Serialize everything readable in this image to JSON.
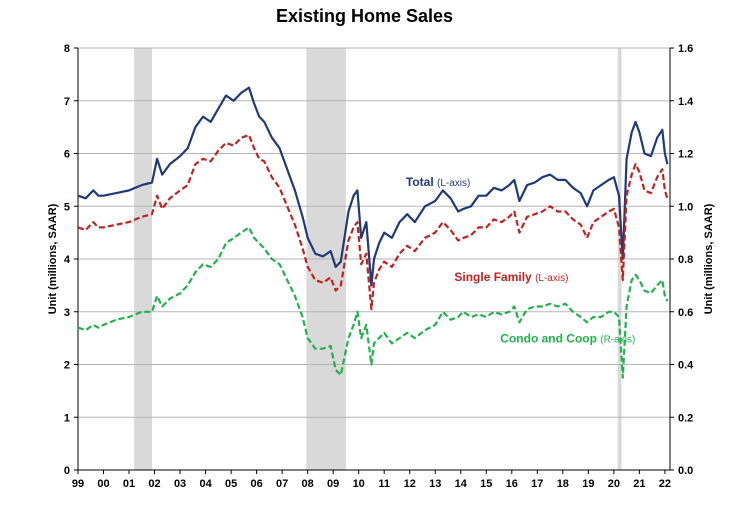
{
  "chart_data": {
    "type": "line",
    "title": "Existing Home Sales",
    "ylabel_left": "Unit (millions, SAAR)",
    "ylabel_right": "Unit (millions, SAAR)",
    "ylim_left": [
      0,
      8
    ],
    "ylim_right": [
      0,
      1.6
    ],
    "yticks_left": [
      "0",
      "1",
      "2",
      "3",
      "4",
      "5",
      "6",
      "7",
      "8"
    ],
    "yticks_right": [
      "0.0",
      "0.2",
      "0.4",
      "0.6",
      "0.8",
      "1.0",
      "1.2",
      "1.4",
      "1.6"
    ],
    "xlim": [
      1999,
      2022.2
    ],
    "xticks": [
      "99",
      "00",
      "01",
      "02",
      "03",
      "04",
      "05",
      "06",
      "07",
      "08",
      "09",
      "10",
      "11",
      "12",
      "13",
      "14",
      "15",
      "16",
      "17",
      "18",
      "19",
      "20",
      "21",
      "22"
    ],
    "grid": true,
    "recessions": [
      [
        2001.2,
        2001.9
      ],
      [
        2007.95,
        2009.5
      ],
      [
        2020.15,
        2020.3
      ]
    ],
    "series": [
      {
        "name": "Total",
        "axis_label": "(L-axis)",
        "axis": "left",
        "color": "#1f3a77",
        "dash": "solid",
        "x": [
          1999.0,
          1999.3,
          1999.6,
          1999.8,
          2000.0,
          2000.5,
          2001.0,
          2001.5,
          2001.9,
          2002.1,
          2002.3,
          2002.6,
          2003.0,
          2003.3,
          2003.6,
          2003.9,
          2004.2,
          2004.5,
          2004.8,
          2005.1,
          2005.4,
          2005.7,
          2005.9,
          2006.1,
          2006.3,
          2006.6,
          2006.9,
          2007.2,
          2007.5,
          2007.8,
          2008.0,
          2008.3,
          2008.6,
          2008.9,
          2009.1,
          2009.3,
          2009.6,
          2009.8,
          2009.95,
          2010.1,
          2010.3,
          2010.5,
          2010.6,
          2010.8,
          2011.0,
          2011.3,
          2011.6,
          2011.9,
          2012.2,
          2012.6,
          2013.0,
          2013.3,
          2013.6,
          2013.9,
          2014.1,
          2014.4,
          2014.7,
          2015.0,
          2015.3,
          2015.6,
          2015.9,
          2016.1,
          2016.3,
          2016.6,
          2016.9,
          2017.2,
          2017.5,
          2017.8,
          2018.1,
          2018.4,
          2018.7,
          2018.95,
          2019.2,
          2019.5,
          2019.8,
          2020.0,
          2020.2,
          2020.35,
          2020.5,
          2020.7,
          2020.85,
          2021.0,
          2021.2,
          2021.45,
          2021.7,
          2021.9,
          2022.0,
          2022.1
        ],
        "values": [
          5.2,
          5.15,
          5.3,
          5.2,
          5.2,
          5.25,
          5.3,
          5.4,
          5.45,
          5.9,
          5.6,
          5.8,
          5.95,
          6.1,
          6.5,
          6.7,
          6.6,
          6.85,
          7.1,
          7.0,
          7.15,
          7.25,
          6.95,
          6.7,
          6.6,
          6.3,
          6.1,
          5.7,
          5.3,
          4.8,
          4.4,
          4.1,
          4.05,
          4.15,
          3.85,
          3.95,
          4.9,
          5.2,
          5.3,
          4.4,
          4.7,
          3.5,
          4.0,
          4.3,
          4.5,
          4.4,
          4.7,
          4.85,
          4.7,
          5.0,
          5.1,
          5.3,
          5.15,
          4.9,
          4.95,
          5.0,
          5.2,
          5.2,
          5.35,
          5.3,
          5.4,
          5.5,
          5.1,
          5.4,
          5.45,
          5.55,
          5.6,
          5.5,
          5.5,
          5.35,
          5.25,
          5.0,
          5.3,
          5.4,
          5.5,
          5.55,
          5.2,
          4.0,
          5.9,
          6.4,
          6.6,
          6.4,
          6.0,
          5.95,
          6.3,
          6.45,
          6.0,
          5.8
        ]
      },
      {
        "name": "Single Family",
        "axis_label": "(L-axis)",
        "axis": "left",
        "color": "#c0221e",
        "dash": "dashed",
        "x": [
          1999.0,
          1999.3,
          1999.6,
          1999.8,
          2000.0,
          2000.5,
          2001.0,
          2001.5,
          2001.9,
          2002.1,
          2002.3,
          2002.6,
          2003.0,
          2003.3,
          2003.6,
          2003.9,
          2004.2,
          2004.5,
          2004.8,
          2005.1,
          2005.4,
          2005.7,
          2005.9,
          2006.1,
          2006.3,
          2006.6,
          2006.9,
          2007.2,
          2007.5,
          2007.8,
          2008.0,
          2008.3,
          2008.6,
          2008.9,
          2009.1,
          2009.3,
          2009.6,
          2009.8,
          2009.95,
          2010.1,
          2010.3,
          2010.5,
          2010.6,
          2010.8,
          2011.0,
          2011.3,
          2011.6,
          2011.9,
          2012.2,
          2012.6,
          2013.0,
          2013.3,
          2013.6,
          2013.9,
          2014.1,
          2014.4,
          2014.7,
          2015.0,
          2015.3,
          2015.6,
          2015.9,
          2016.1,
          2016.3,
          2016.6,
          2016.9,
          2017.2,
          2017.5,
          2017.8,
          2018.1,
          2018.4,
          2018.7,
          2018.95,
          2019.2,
          2019.5,
          2019.8,
          2020.0,
          2020.2,
          2020.35,
          2020.5,
          2020.7,
          2020.85,
          2021.0,
          2021.2,
          2021.45,
          2021.7,
          2021.9,
          2022.0,
          2022.1
        ],
        "values": [
          4.6,
          4.55,
          4.7,
          4.6,
          4.6,
          4.65,
          4.7,
          4.8,
          4.85,
          5.2,
          4.95,
          5.15,
          5.3,
          5.4,
          5.8,
          5.9,
          5.85,
          6.05,
          6.2,
          6.15,
          6.3,
          6.35,
          6.1,
          5.9,
          5.85,
          5.55,
          5.35,
          5.0,
          4.65,
          4.2,
          3.85,
          3.6,
          3.55,
          3.65,
          3.4,
          3.5,
          4.35,
          4.6,
          4.7,
          3.9,
          4.1,
          3.05,
          3.55,
          3.8,
          3.95,
          3.85,
          4.1,
          4.25,
          4.15,
          4.4,
          4.5,
          4.7,
          4.55,
          4.35,
          4.4,
          4.45,
          4.6,
          4.6,
          4.75,
          4.7,
          4.8,
          4.9,
          4.5,
          4.8,
          4.85,
          4.9,
          5.0,
          4.9,
          4.9,
          4.75,
          4.65,
          4.4,
          4.7,
          4.8,
          4.9,
          4.95,
          4.6,
          3.6,
          5.2,
          5.6,
          5.8,
          5.65,
          5.3,
          5.25,
          5.55,
          5.7,
          5.3,
          5.15
        ]
      },
      {
        "name": "Condo and Coop",
        "axis_label": "(R-axis)",
        "axis": "right",
        "color": "#21b24b",
        "dash": "dashed",
        "x": [
          1999.0,
          1999.3,
          1999.6,
          1999.8,
          2000.0,
          2000.5,
          2001.0,
          2001.5,
          2001.9,
          2002.1,
          2002.3,
          2002.6,
          2003.0,
          2003.3,
          2003.6,
          2003.9,
          2004.2,
          2004.5,
          2004.8,
          2005.1,
          2005.4,
          2005.7,
          2005.9,
          2006.1,
          2006.3,
          2006.6,
          2006.9,
          2007.2,
          2007.5,
          2007.8,
          2008.0,
          2008.3,
          2008.6,
          2008.9,
          2009.1,
          2009.3,
          2009.6,
          2009.8,
          2009.95,
          2010.1,
          2010.3,
          2010.5,
          2010.6,
          2010.8,
          2011.0,
          2011.3,
          2011.6,
          2011.9,
          2012.2,
          2012.6,
          2013.0,
          2013.3,
          2013.6,
          2013.9,
          2014.1,
          2014.4,
          2014.7,
          2015.0,
          2015.3,
          2015.6,
          2015.9,
          2016.1,
          2016.3,
          2016.6,
          2016.9,
          2017.2,
          2017.5,
          2017.8,
          2018.1,
          2018.4,
          2018.7,
          2018.95,
          2019.2,
          2019.5,
          2019.8,
          2020.0,
          2020.2,
          2020.35,
          2020.5,
          2020.7,
          2020.85,
          2021.0,
          2021.2,
          2021.45,
          2021.7,
          2021.9,
          2022.0,
          2022.1
        ],
        "values": [
          0.54,
          0.53,
          0.55,
          0.54,
          0.55,
          0.57,
          0.58,
          0.6,
          0.6,
          0.66,
          0.62,
          0.65,
          0.67,
          0.7,
          0.75,
          0.78,
          0.77,
          0.8,
          0.86,
          0.88,
          0.9,
          0.92,
          0.88,
          0.86,
          0.84,
          0.8,
          0.78,
          0.72,
          0.66,
          0.58,
          0.5,
          0.46,
          0.46,
          0.47,
          0.38,
          0.36,
          0.5,
          0.55,
          0.6,
          0.5,
          0.55,
          0.4,
          0.48,
          0.5,
          0.52,
          0.48,
          0.5,
          0.52,
          0.5,
          0.53,
          0.55,
          0.6,
          0.57,
          0.58,
          0.6,
          0.58,
          0.59,
          0.58,
          0.6,
          0.59,
          0.6,
          0.62,
          0.56,
          0.61,
          0.62,
          0.62,
          0.63,
          0.62,
          0.63,
          0.6,
          0.58,
          0.56,
          0.58,
          0.58,
          0.6,
          0.6,
          0.58,
          0.35,
          0.62,
          0.72,
          0.74,
          0.72,
          0.68,
          0.67,
          0.7,
          0.72,
          0.66,
          0.64
        ]
      }
    ]
  }
}
